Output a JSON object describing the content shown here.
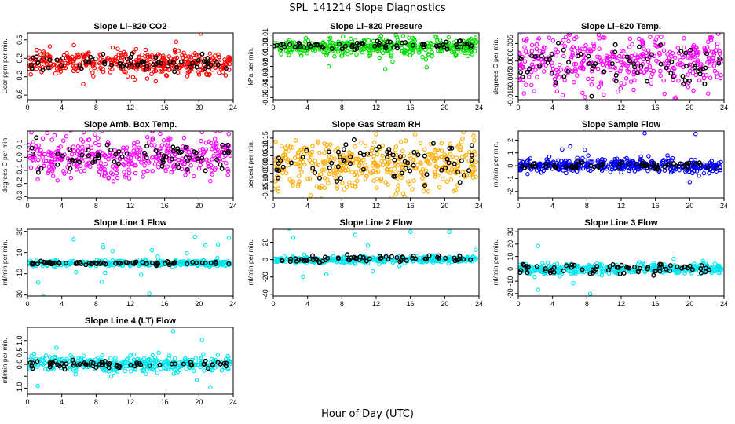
{
  "title": "SPL_141214  Slope Diagnostics",
  "xlabel": "Hour of Day (UTC)",
  "chart_data": [
    {
      "type": "scatter",
      "title": "Slope Li–820 CO2",
      "ylabel": "Licor ppm per min.",
      "xlim": [
        0,
        24
      ],
      "ylim": [
        -0.7,
        0.75
      ],
      "xticks": [
        0,
        4,
        8,
        12,
        16,
        20,
        24
      ],
      "yticks": [
        -0.6,
        -0.2,
        0.2,
        0.6
      ],
      "ytick_labels": [
        "-0.6",
        "-0.2",
        "0.2",
        "0.6"
      ],
      "series": [
        {
          "color": "#ff0000",
          "center": 0.1,
          "spread": 0.12,
          "outlier_spread": 0.3
        },
        {
          "color": "#000000",
          "center": 0.1,
          "spread": 0.08
        }
      ]
    },
    {
      "type": "scatter",
      "title": "Slope Li–820 Pressure",
      "ylabel": "kPa per min.",
      "xlim": [
        0,
        24
      ],
      "ylim": [
        -0.052,
        0.012
      ],
      "xticks": [
        0,
        4,
        8,
        12,
        16,
        20,
        24
      ],
      "yticks": [
        -0.05,
        -0.04,
        -0.03,
        -0.02,
        -0.01,
        0.0,
        0.01
      ],
      "ytick_labels": [
        "-0.05",
        "-0.04",
        "-0.03",
        "-0.02",
        "-0.01",
        "0.00",
        "0.01"
      ],
      "series": [
        {
          "color": "#00dd00",
          "center": -0.002,
          "spread": 0.004,
          "outlier_spread": 0.02
        },
        {
          "color": "#000000",
          "center": 0.0,
          "spread": 0.002
        }
      ]
    },
    {
      "type": "scatter",
      "title": "Slope Li–820 Temp.",
      "ylabel": "degrees C per min.",
      "xlim": [
        0,
        24
      ],
      "ylim": [
        -0.011,
        0.008
      ],
      "xticks": [
        0,
        4,
        8,
        12,
        16,
        20,
        24
      ],
      "yticks": [
        -0.01,
        -0.005,
        0.0,
        0.005
      ],
      "ytick_labels": [
        "-0.010",
        "-0.005",
        "0.000",
        "0.005"
      ],
      "series": [
        {
          "color": "#ff00ff",
          "center": 0.0,
          "spread": 0.004,
          "outlier_spread": 0.006
        },
        {
          "color": "#000000",
          "center": -0.001,
          "spread": 0.003
        }
      ]
    },
    {
      "type": "scatter",
      "title": "Slope Amb. Box Temp.",
      "ylabel": "degrees C per min.",
      "xlim": [
        0,
        24
      ],
      "ylim": [
        -0.31,
        0.2
      ],
      "xticks": [
        0,
        4,
        8,
        12,
        16,
        20,
        24
      ],
      "yticks": [
        -0.3,
        -0.2,
        -0.1,
        0.0,
        0.1
      ],
      "ytick_labels": [
        "-0.3",
        "-0.2",
        "-0.1",
        "0.0",
        "0.1"
      ],
      "series": [
        {
          "color": "#ff00ff",
          "center": 0.0,
          "spread": 0.08,
          "outlier_spread": 0.15
        },
        {
          "color": "#000000",
          "center": 0.0,
          "spread": 0.06
        }
      ]
    },
    {
      "type": "scatter",
      "title": "Slope Gas Stream RH",
      "ylabel": "percent per min.",
      "xlim": [
        0,
        24
      ],
      "ylim": [
        -0.19,
        0.19
      ],
      "xticks": [
        0,
        4,
        8,
        12,
        16,
        20,
        24
      ],
      "yticks": [
        -0.15,
        -0.1,
        -0.05,
        0.0,
        0.05,
        0.1,
        0.15
      ],
      "ytick_labels": [
        "-0.15",
        "-0.10",
        "-0.05",
        "0.00",
        "0.05",
        "0.10",
        "0.15"
      ],
      "series": [
        {
          "color": "#ffaa00",
          "center": 0.0,
          "spread": 0.07,
          "outlier_spread": 0.1
        },
        {
          "color": "#000000",
          "center": 0.0,
          "spread": 0.06
        }
      ]
    },
    {
      "type": "scatter",
      "title": "Slope Sample Flow",
      "ylabel": "ml/min per min.",
      "xlim": [
        0,
        24
      ],
      "ylim": [
        -2.5,
        2.7
      ],
      "xticks": [
        0,
        4,
        8,
        12,
        16,
        20,
        24
      ],
      "yticks": [
        -2,
        -1,
        0,
        1,
        2
      ],
      "ytick_labels": [
        "-2",
        "-1",
        "0",
        "1",
        "2"
      ],
      "series": [
        {
          "color": "#0000ff",
          "center": 0.0,
          "spread": 0.25,
          "outlier_spread": 1.5
        },
        {
          "color": "#000000",
          "center": 0.0,
          "spread": 0.15
        }
      ]
    },
    {
      "type": "scatter",
      "title": "Slope Line 1 Flow",
      "ylabel": "ml/min per min.",
      "xlim": [
        0,
        24
      ],
      "ylim": [
        -31,
        32
      ],
      "xticks": [
        0,
        4,
        8,
        12,
        16,
        20,
        24
      ],
      "yticks": [
        -30,
        -10,
        10,
        30
      ],
      "ytick_labels": [
        "-30",
        "-10",
        "10",
        "30"
      ],
      "series": [
        {
          "color": "#00e5ee",
          "center": 0.0,
          "spread": 1.2,
          "outlier_spread": 20
        },
        {
          "color": "#000000",
          "center": 0.0,
          "spread": 0.8
        }
      ]
    },
    {
      "type": "scatter",
      "title": "Slope Line 2 Flow",
      "ylabel": "ml/min per min.",
      "xlim": [
        0,
        24
      ],
      "ylim": [
        -42,
        35
      ],
      "xticks": [
        0,
        4,
        8,
        12,
        16,
        20,
        24
      ],
      "yticks": [
        -40,
        -20,
        0,
        20
      ],
      "ytick_labels": [
        "-40",
        "-20",
        "0",
        "20"
      ],
      "series": [
        {
          "color": "#00e5ee",
          "center": 0.0,
          "spread": 2.0,
          "outlier_spread": 25
        },
        {
          "color": "#000000",
          "center": 1.0,
          "spread": 2.0
        }
      ]
    },
    {
      "type": "scatter",
      "title": "Slope Line 3 Flow",
      "ylabel": "ml/min per min.",
      "xlim": [
        0,
        24
      ],
      "ylim": [
        -22,
        32
      ],
      "xticks": [
        0,
        4,
        8,
        12,
        16,
        20,
        24
      ],
      "yticks": [
        -20,
        -10,
        0,
        10,
        20,
        30
      ],
      "ytick_labels": [
        "-20",
        "-10",
        "0",
        "10",
        "20",
        "30"
      ],
      "series": [
        {
          "color": "#00e5ee",
          "center": 0.0,
          "spread": 2.0,
          "outlier_spread": 15
        },
        {
          "color": "#000000",
          "center": 0.0,
          "spread": 2.0
        }
      ]
    },
    {
      "type": "scatter",
      "title": "Slope Line 4 (LT) Flow",
      "ylabel": "ml/min per min.",
      "xlim": [
        0,
        24
      ],
      "ylim": [
        -1.25,
        1.55
      ],
      "xticks": [
        0,
        4,
        8,
        12,
        16,
        20,
        24
      ],
      "yticks": [
        -1.0,
        -0.5,
        0.0,
        0.5,
        1.0
      ],
      "ytick_labels": [
        "-1.0",
        "",
        "0.0",
        "0.5",
        "1.0"
      ],
      "series": [
        {
          "color": "#00e5ee",
          "center": 0.0,
          "spread": 0.15,
          "outlier_spread": 0.8
        },
        {
          "color": "#000000",
          "center": 0.0,
          "spread": 0.08
        }
      ]
    }
  ]
}
